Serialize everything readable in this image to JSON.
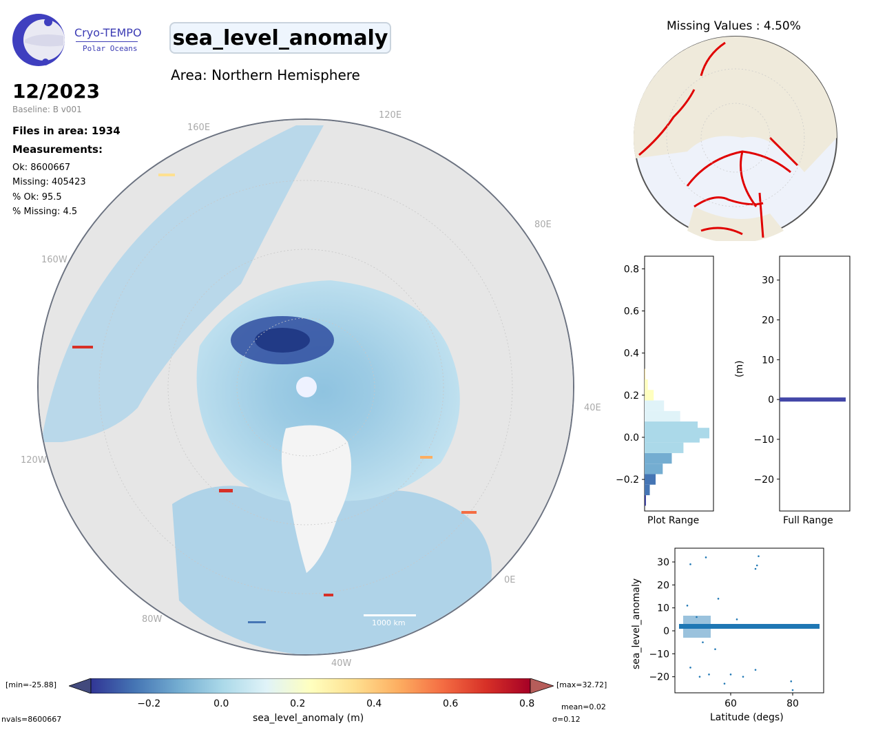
{
  "logo": {
    "name": "Cryo-TEMPO",
    "subtitle": "Polar Oceans"
  },
  "title": "sea_level_anomaly",
  "area": "Area: Northern Hemisphere",
  "date": "12/2023",
  "baseline": "Baseline: B v001",
  "files": "Files in area: 1934",
  "measurements_label": "Measurements:",
  "stats": {
    "ok": "Ok: 8600667",
    "missing": "Missing: 405423",
    "pct_ok": "% Ok: 95.5",
    "pct_missing": "% Missing: 4.5"
  },
  "missing_title": "Missing Values : 4.50%",
  "map": {
    "lon_labels": [
      "120E",
      "160E",
      "80E",
      "160W",
      "40E",
      "120W",
      "0E",
      "80W",
      "40W"
    ],
    "scale_label": "1000 km",
    "colors": {
      "land": "#e3e3e3",
      "ocean_low": "#313695",
      "ocean_mid": "#abd9e9",
      "ocean_high": "#d73027",
      "hole": "#eef2ff"
    }
  },
  "colorbar": {
    "label": "sea_level_anomaly (m)",
    "ticks": [
      "−0.2",
      "0.0",
      "0.2",
      "0.4",
      "0.6",
      "0.8"
    ],
    "min_label": "[min=-25.88]",
    "max_label": "[max=32.72]",
    "nvals": "nvals=8600667",
    "mean": "mean=0.02",
    "sigma": "σ=0.12",
    "colors": [
      "#313695",
      "#4575b4",
      "#74add1",
      "#abd9e9",
      "#e0f3f8",
      "#ffffbf",
      "#fee090",
      "#fdae61",
      "#f46d43",
      "#d73027",
      "#a50026"
    ]
  },
  "histograms": {
    "plot_range": {
      "xlabel": "Plot Range",
      "yticks": [
        "0.8",
        "0.6",
        "0.4",
        "0.2",
        "0.0",
        "−0.2"
      ]
    },
    "full_range": {
      "xlabel": "Full Range",
      "ylabel": "(m)",
      "yticks": [
        "30",
        "20",
        "10",
        "0",
        "−10",
        "−20"
      ]
    }
  },
  "chart_data": [
    {
      "type": "bar",
      "title": "",
      "xlabel": "Plot Range",
      "orientation": "horizontal",
      "y": [
        -0.3,
        -0.25,
        -0.2,
        -0.15,
        -0.1,
        -0.05,
        0.0,
        0.02,
        0.05,
        0.1,
        0.15,
        0.2,
        0.25,
        0.3
      ],
      "values": [
        0.02,
        0.08,
        0.17,
        0.28,
        0.42,
        0.6,
        0.85,
        1.0,
        0.82,
        0.55,
        0.3,
        0.14,
        0.05,
        0.01
      ],
      "ylim": [
        -0.35,
        0.86
      ]
    },
    {
      "type": "bar",
      "title": "",
      "xlabel": "Full Range",
      "ylabel": "(m)",
      "orientation": "horizontal",
      "y": [
        0
      ],
      "values": [
        1.0
      ],
      "ylim": [
        -28,
        36
      ]
    },
    {
      "type": "scatter",
      "title": "",
      "xlabel": "Latitude (degs)",
      "ylabel": "sea_level_anomaly",
      "xlim": [
        42,
        90
      ],
      "ylim": [
        -27,
        36
      ],
      "xticks": [
        "60",
        "80"
      ],
      "yticks": [
        "30",
        "20",
        "10",
        "0",
        "−10",
        "−20"
      ],
      "points": [
        [
          47,
          29
        ],
        [
          52,
          32
        ],
        [
          68,
          27
        ],
        [
          68.5,
          28.5
        ],
        [
          69,
          32.5
        ],
        [
          46,
          11
        ],
        [
          56,
          14
        ],
        [
          47,
          -16
        ],
        [
          50,
          -20
        ],
        [
          53,
          -19
        ],
        [
          58,
          -23
        ],
        [
          60,
          -19
        ],
        [
          64,
          -20
        ],
        [
          68,
          -17
        ],
        [
          79.5,
          -22
        ],
        [
          80,
          -25.8
        ],
        [
          55,
          -8
        ],
        [
          49,
          6
        ],
        [
          62,
          5
        ],
        [
          51,
          -5
        ]
      ]
    }
  ]
}
